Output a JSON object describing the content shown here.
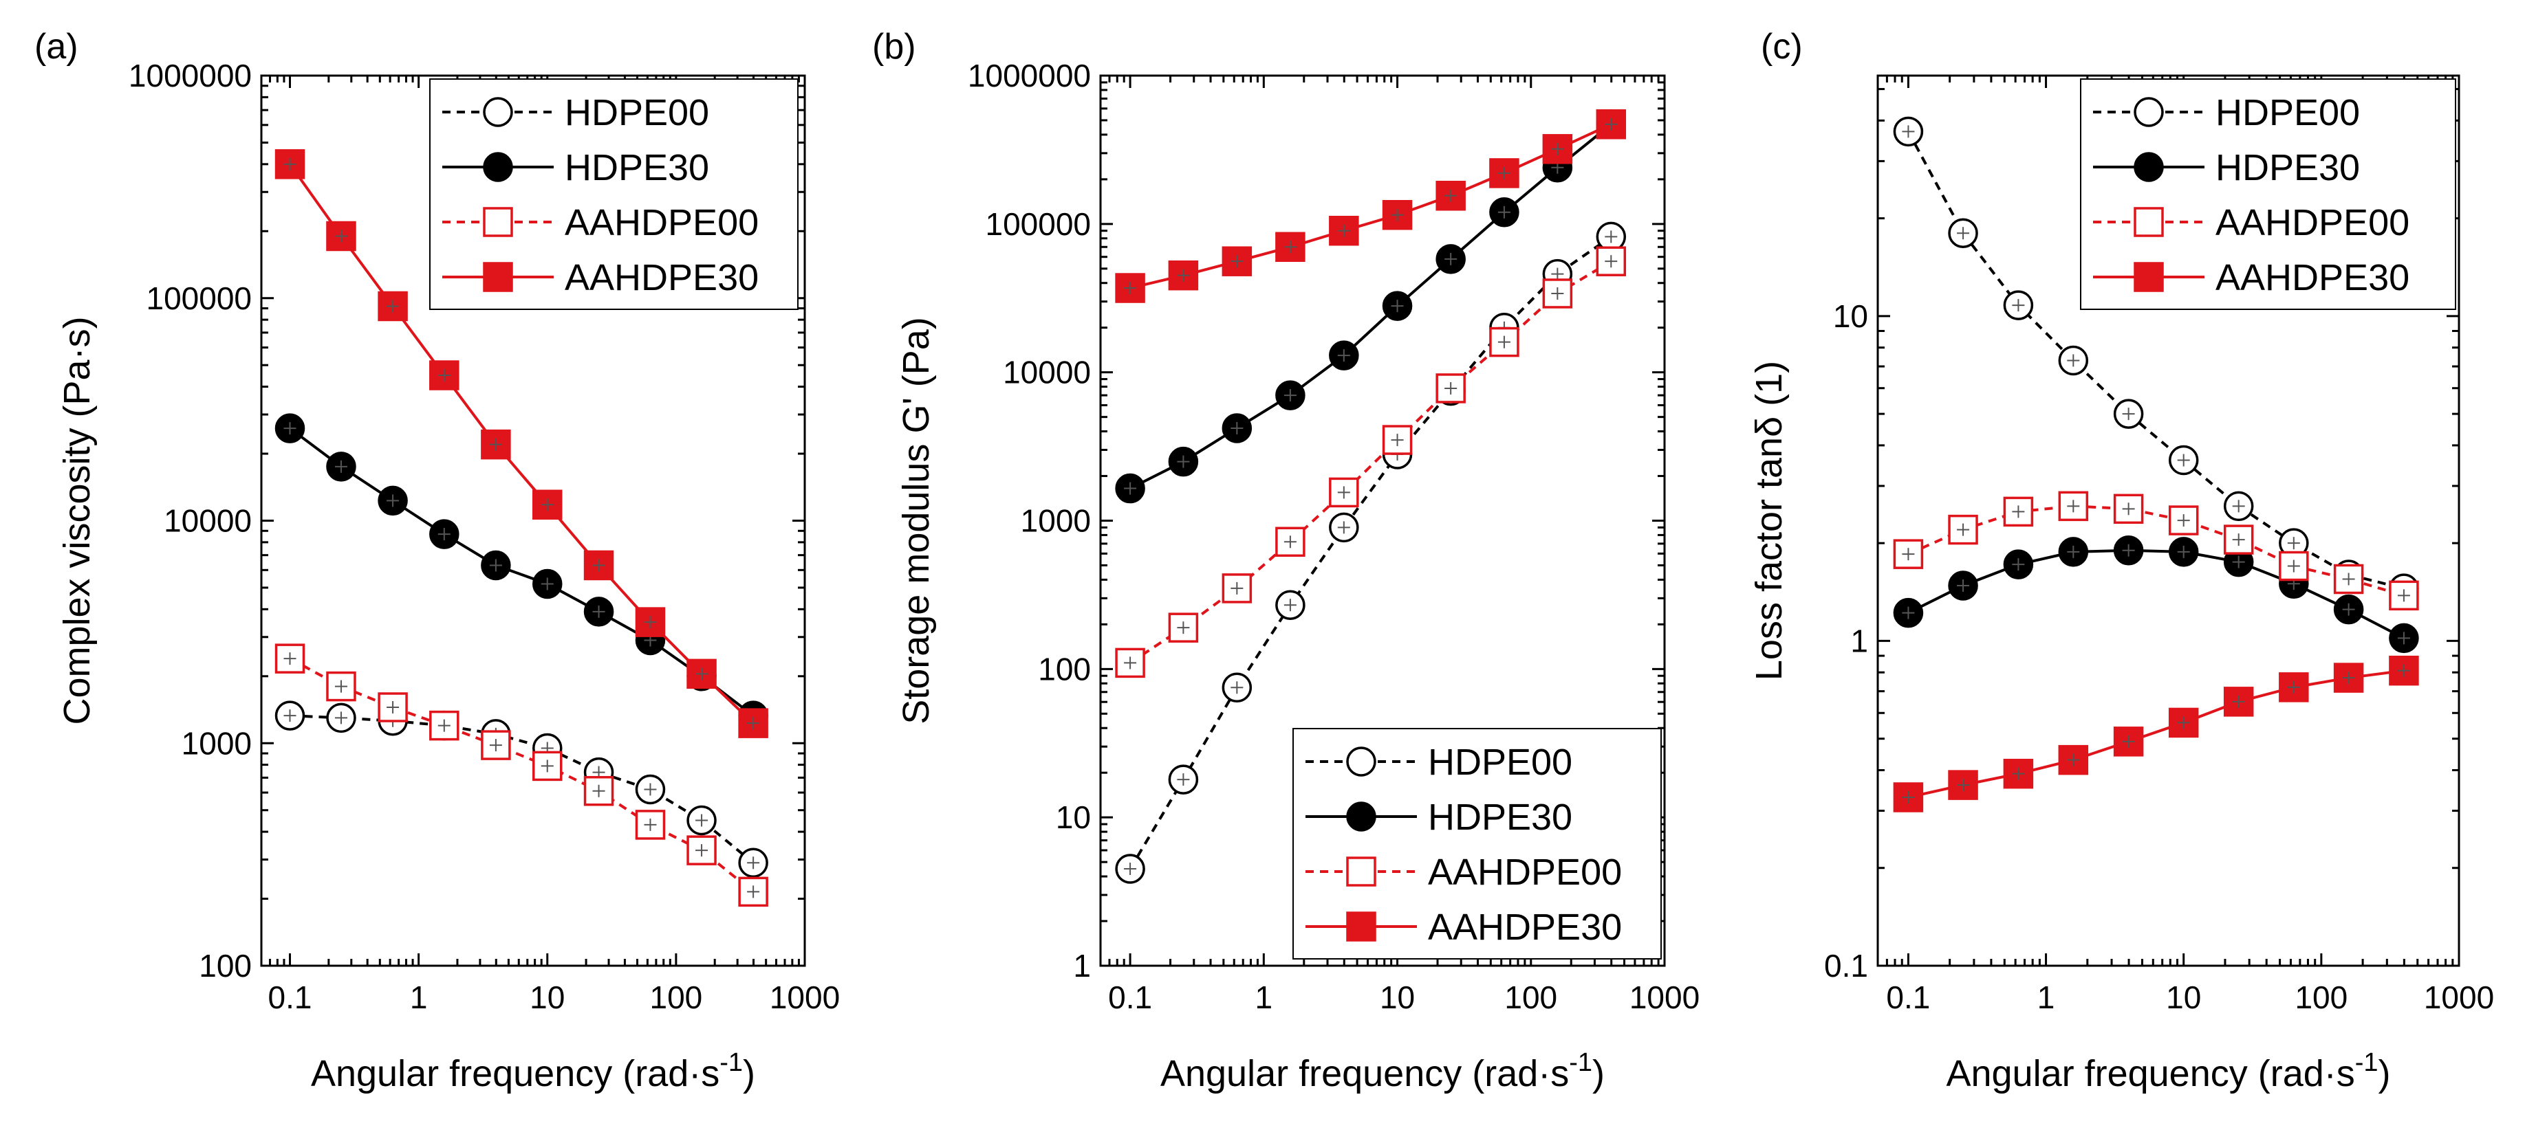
{
  "colors": {
    "black_series": "#000000",
    "red_series": "#e0151b",
    "errorbar": "#555555",
    "background": "#ffffff"
  },
  "chart_data": [
    {
      "type": "line",
      "panel_label": "(a)",
      "xscale": "log",
      "yscale": "log",
      "xlabel": "Angular frequency (rad·s",
      "xlabel_sup": "-1",
      "xlabel_end": ")",
      "ylabel": "Complex viscosity (Pa·s)",
      "xlim": [
        0.06,
        1000
      ],
      "ylim": [
        100,
        1000000
      ],
      "xticks": [
        0.1,
        1,
        10,
        100,
        1000
      ],
      "xtick_labels": [
        "0.1",
        "1",
        "10",
        "100",
        "1000"
      ],
      "yticks": [
        100,
        1000,
        10000,
        100000,
        1000000
      ],
      "ytick_labels": [
        "100",
        "1000",
        "10000",
        "100000",
        "1000000"
      ],
      "legend_position": "top-right",
      "x": [
        0.1,
        0.25,
        0.63,
        1.58,
        3.98,
        10,
        25.1,
        63.1,
        158,
        398
      ],
      "series": [
        {
          "name": "HDPE00",
          "color": "#000000",
          "marker": "circle",
          "fill": "open",
          "dash": true,
          "values": [
            1330,
            1300,
            1260,
            1200,
            1100,
            950,
            740,
            620,
            450,
            290
          ]
        },
        {
          "name": "HDPE30",
          "color": "#000000",
          "marker": "circle",
          "fill": "filled",
          "dash": false,
          "values": [
            26000,
            17500,
            12300,
            8700,
            6300,
            5200,
            3900,
            2900,
            2000,
            1330
          ]
        },
        {
          "name": "AAHDPE00",
          "color": "#e0151b",
          "marker": "square",
          "fill": "open",
          "dash": true,
          "values": [
            2400,
            1800,
            1450,
            1200,
            980,
            790,
            610,
            430,
            330,
            215
          ]
        },
        {
          "name": "AAHDPE30",
          "color": "#e0151b",
          "marker": "square",
          "fill": "filled",
          "dash": false,
          "values": [
            400000,
            190000,
            92000,
            45000,
            22000,
            11800,
            6300,
            3500,
            2050,
            1230
          ]
        }
      ]
    },
    {
      "type": "line",
      "panel_label": "(b)",
      "xscale": "log",
      "yscale": "log",
      "xlabel": "Angular frequency (rad·s",
      "xlabel_sup": "-1",
      "xlabel_end": ")",
      "ylabel": "Storage modulus G' (Pa)",
      "xlim": [
        0.06,
        1000
      ],
      "ylim": [
        1,
        1000000
      ],
      "xticks": [
        0.1,
        1,
        10,
        100,
        1000
      ],
      "xtick_labels": [
        "0.1",
        "1",
        "10",
        "100",
        "1000"
      ],
      "yticks": [
        1,
        10,
        100,
        1000,
        10000,
        100000,
        1000000
      ],
      "ytick_labels": [
        "1",
        "10",
        "100",
        "1000",
        "10000",
        "100000",
        "1000000"
      ],
      "legend_position": "bottom-right",
      "x": [
        0.1,
        0.25,
        0.63,
        1.58,
        3.98,
        10,
        25.1,
        63.1,
        158,
        398
      ],
      "series": [
        {
          "name": "HDPE00",
          "color": "#000000",
          "marker": "circle",
          "fill": "open",
          "dash": true,
          "values": [
            4.5,
            18,
            75,
            270,
            900,
            2800,
            7500,
            20000,
            46000,
            82000
          ]
        },
        {
          "name": "HDPE30",
          "color": "#000000",
          "marker": "circle",
          "fill": "filled",
          "dash": false,
          "values": [
            1650,
            2500,
            4200,
            7000,
            13000,
            28000,
            58000,
            120000,
            240000,
            470000
          ]
        },
        {
          "name": "AAHDPE00",
          "color": "#e0151b",
          "marker": "square",
          "fill": "open",
          "dash": true,
          "values": [
            110,
            190,
            350,
            720,
            1550,
            3500,
            7800,
            16000,
            34000,
            56000
          ]
        },
        {
          "name": "AAHDPE30",
          "color": "#e0151b",
          "marker": "square",
          "fill": "filled",
          "dash": false,
          "values": [
            37000,
            45000,
            56000,
            70000,
            90000,
            115000,
            155000,
            220000,
            320000,
            470000
          ]
        }
      ]
    },
    {
      "type": "line",
      "panel_label": "(c)",
      "xscale": "log",
      "yscale": "log",
      "xlabel": "Angular frequency (rad·s",
      "xlabel_sup": "-1",
      "xlabel_end": ")",
      "ylabel": "Loss factor tanδ (1)",
      "xlim": [
        0.06,
        1000
      ],
      "ylim": [
        0.1,
        55
      ],
      "xticks": [
        0.1,
        1,
        10,
        100,
        1000
      ],
      "xtick_labels": [
        "0.1",
        "1",
        "10",
        "100",
        "1000"
      ],
      "yticks": [
        0.1,
        1,
        10
      ],
      "ytick_labels": [
        "0.1",
        "1",
        "10"
      ],
      "legend_position": "top-right",
      "x": [
        0.1,
        0.25,
        0.63,
        1.58,
        3.98,
        10,
        25.1,
        63.1,
        158,
        398
      ],
      "series": [
        {
          "name": "HDPE00",
          "color": "#000000",
          "marker": "circle",
          "fill": "open",
          "dash": true,
          "values": [
            37,
            18,
            10.8,
            7.3,
            5.0,
            3.6,
            2.6,
            2.0,
            1.6,
            1.45
          ]
        },
        {
          "name": "HDPE30",
          "color": "#000000",
          "marker": "circle",
          "fill": "filled",
          "dash": false,
          "values": [
            1.22,
            1.48,
            1.72,
            1.88,
            1.9,
            1.88,
            1.75,
            1.5,
            1.25,
            1.02
          ]
        },
        {
          "name": "AAHDPE00",
          "color": "#e0151b",
          "marker": "square",
          "fill": "open",
          "dash": true,
          "values": [
            1.85,
            2.2,
            2.5,
            2.6,
            2.55,
            2.35,
            2.05,
            1.7,
            1.55,
            1.38
          ]
        },
        {
          "name": "AAHDPE30",
          "color": "#e0151b",
          "marker": "square",
          "fill": "filled",
          "dash": false,
          "values": [
            0.33,
            0.36,
            0.39,
            0.43,
            0.49,
            0.56,
            0.65,
            0.72,
            0.77,
            0.81
          ]
        }
      ]
    }
  ]
}
